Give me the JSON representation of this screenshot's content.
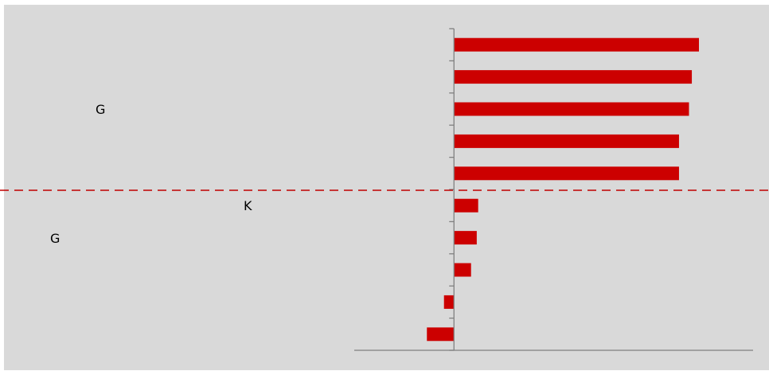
{
  "chart_data": {
    "type": "bar",
    "orientation": "horizontal",
    "title": "",
    "xlabel": "",
    "ylabel": "",
    "categories": [
      "",
      "",
      "",
      "",
      "",
      "",
      "",
      "",
      "",
      ""
    ],
    "values": [
      86,
      83.5,
      82.5,
      79,
      79,
      8.5,
      8,
      6,
      -3.5,
      -9.5
    ],
    "xlim": [
      -35,
      105
    ],
    "grid": false,
    "legend": "none",
    "reference_line": {
      "style": "dashed",
      "color": "#c00000"
    },
    "annotations": [
      "G",
      "K",
      "G"
    ]
  },
  "colors": {
    "panel_bg": "#d9d9d9",
    "bar": "#cc0000",
    "axis": "#808080",
    "reference_line": "#c00000"
  }
}
